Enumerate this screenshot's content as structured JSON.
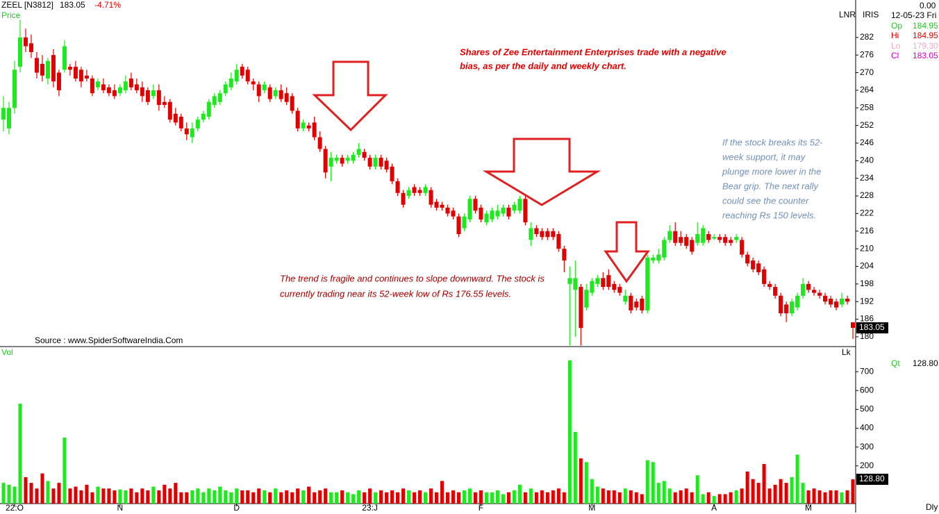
{
  "header": {
    "symbol": "ZEEL [N3812]",
    "price": 183.05,
    "change": {
      "value": -4.71,
      "label": "-4.71%"
    },
    "price_label": "Price",
    "vol_label": "Vol",
    "lnr": "LNR",
    "iris": "IRIS",
    "lk": "Lk",
    "period": "Dly",
    "source": "Source : www.SpiderSoftwareIndia.Com"
  },
  "info": {
    "change": {
      "value": 0,
      "label": "0.00"
    },
    "date": "12-05-23 Fri",
    "rows": [
      {
        "label": "Op",
        "value": 184.95
      },
      {
        "label": "Hi",
        "value": 184.95
      },
      {
        "label": "Lo",
        "value": {
          "value": 179.3,
          "label": "179.30"
        }
      },
      {
        "label": "Cl",
        "value": 183.05
      }
    ],
    "qt": {
      "label": "Qt",
      "value": {
        "value": 128.8,
        "label": "128.80"
      }
    }
  },
  "annotations": [
    {
      "lines": [
        "Shares of Zee Entertainment Enterprises trade with a negative",
        "bias, as per the daily and weekly chart."
      ]
    },
    {
      "lines": [
        "The trend is fragile and continues to slope downward. The stock is",
        "currently trading near its 52-week low of Rs 176.55 levels."
      ]
    },
    {
      "lines": [
        "If the stock breaks its 52-",
        "week support, it may",
        "plunge more lower in the",
        "Bear grip. The next rally",
        "could see the counter",
        "reaching Rs 150 levels."
      ]
    }
  ],
  "chart_data": {
    "type": "candlestick",
    "up_color": "#1ee81e",
    "down_color": "#e00000",
    "grid": false,
    "categories": [
      null,
      null,
      "22:O",
      null,
      null,
      null,
      null,
      null,
      null,
      null,
      null,
      null,
      null,
      null,
      null,
      null,
      null,
      null,
      null,
      null,
      null,
      "N",
      null,
      null,
      null,
      null,
      null,
      null,
      null,
      null,
      null,
      null,
      null,
      null,
      null,
      null,
      null,
      null,
      null,
      null,
      null,
      null,
      "D",
      null,
      null,
      null,
      null,
      null,
      null,
      null,
      null,
      null,
      null,
      null,
      null,
      null,
      null,
      null,
      null,
      null,
      null,
      null,
      null,
      null,
      null,
      null,
      "23:J",
      null,
      null,
      null,
      null,
      null,
      null,
      null,
      null,
      null,
      null,
      null,
      null,
      null,
      null,
      null,
      null,
      null,
      null,
      null,
      "F",
      null,
      null,
      null,
      null,
      null,
      null,
      null,
      null,
      null,
      null,
      null,
      null,
      null,
      null,
      null,
      null,
      null,
      null,
      null,
      "M",
      null,
      null,
      null,
      null,
      null,
      null,
      null,
      null,
      null,
      null,
      null,
      null,
      null,
      null,
      null,
      null,
      null,
      null,
      null,
      null,
      null,
      "A",
      null,
      null,
      null,
      null,
      null,
      null,
      null,
      null,
      null,
      null,
      null,
      null,
      null,
      null,
      null,
      null,
      "M",
      null,
      null,
      null,
      null,
      null,
      null,
      null,
      null
    ],
    "open": [
      254,
      251,
      258,
      272,
      282,
      280,
      275,
      273,
      268,
      276,
      270,
      271,
      272,
      272,
      271,
      269,
      268,
      265,
      266,
      265,
      264,
      263,
      264,
      268,
      266,
      265,
      264,
      262,
      264,
      260,
      260,
      256,
      255,
      251,
      248,
      251,
      254,
      255,
      259,
      260,
      263,
      265,
      267,
      272,
      271,
      267,
      266,
      264,
      265,
      262,
      264,
      263,
      262,
      257,
      251,
      252,
      253,
      248,
      244,
      238,
      240,
      241,
      240,
      240,
      242,
      243,
      241,
      238,
      241,
      240,
      238,
      233,
      229,
      228,
      231,
      230,
      229,
      230,
      226,
      225,
      224,
      223,
      221,
      217,
      220,
      227,
      224,
      219,
      220,
      221,
      222,
      224,
      223,
      223,
      227,
      213,
      217,
      216,
      216,
      216,
      215,
      210,
      198,
      196,
      197,
      190,
      195,
      198,
      200,
      201,
      198,
      197,
      192,
      194,
      192,
      193,
      189,
      206,
      206,
      207,
      213,
      216,
      214,
      214,
      213,
      212,
      212,
      215,
      213.5,
      214,
      214,
      213,
      213,
      213,
      208,
      206,
      205,
      203,
      198,
      197,
      194,
      191,
      188,
      190,
      194,
      198,
      196,
      195,
      194,
      193,
      192,
      191,
      193,
      184.95
    ],
    "high": [
      262,
      260,
      274,
      288,
      285,
      283,
      277,
      276,
      275,
      278,
      271,
      281,
      273,
      274,
      272,
      271,
      269,
      268,
      268,
      266,
      266,
      266,
      269,
      270,
      268,
      267,
      265,
      266,
      266,
      262,
      261,
      258,
      256,
      253,
      253,
      255,
      257,
      261,
      263,
      264,
      267,
      270,
      273,
      273,
      272,
      268,
      267,
      267,
      266,
      265,
      266,
      265,
      263,
      258,
      254,
      253,
      255,
      250,
      245,
      243,
      242,
      242,
      242,
      243,
      246,
      244,
      242,
      242,
      242,
      241,
      239,
      234,
      230,
      231,
      232,
      231,
      232,
      231,
      227,
      226,
      225,
      224,
      222,
      222,
      228,
      228,
      225,
      223,
      224,
      225,
      225,
      225,
      226,
      228,
      228,
      219,
      218,
      217,
      217,
      217,
      216,
      211,
      204,
      206,
      198,
      198,
      200,
      201,
      202,
      203,
      199,
      198,
      196,
      195,
      193,
      194,
      208,
      208,
      210,
      214,
      218,
      219,
      216,
      215,
      214,
      219,
      218,
      216,
      215,
      215,
      215,
      214,
      215,
      214,
      209,
      207,
      206,
      204,
      199,
      198,
      195,
      192,
      193,
      195,
      200,
      199,
      197,
      196,
      195,
      194,
      193,
      195,
      194,
      184.95
    ],
    "low": [
      250,
      249,
      256,
      270,
      277,
      275,
      268,
      267,
      266,
      265,
      262,
      270,
      269,
      267,
      265,
      267,
      262,
      264,
      263,
      262,
      261,
      262,
      263,
      264,
      263,
      260,
      259,
      261,
      257,
      258,
      253,
      252,
      250,
      247,
      246,
      250,
      253,
      254,
      258,
      259,
      262,
      264,
      266,
      268,
      266,
      264,
      260,
      263,
      260,
      261,
      260,
      259,
      256,
      250,
      250,
      250,
      247,
      243,
      234,
      233,
      239,
      238,
      239,
      239,
      241,
      240,
      237,
      237,
      237,
      236,
      232,
      228,
      224,
      227,
      228,
      228,
      228,
      224,
      223,
      223,
      221,
      220,
      214,
      216,
      219,
      222,
      219,
      218,
      219,
      220,
      221,
      220,
      222,
      222,
      218,
      211,
      214,
      213,
      213,
      213,
      209,
      202,
      177,
      180,
      177,
      189,
      194,
      197,
      196,
      196,
      195,
      194,
      191,
      188,
      189,
      188,
      188,
      205,
      205,
      206,
      212,
      211,
      211,
      210,
      208,
      211,
      211,
      212,
      213,
      212,
      211,
      211,
      212,
      207,
      204,
      202,
      201,
      197,
      196,
      193,
      187,
      185,
      187,
      189,
      193,
      195,
      194,
      193,
      191,
      190,
      189,
      190,
      191,
      179.3
    ],
    "close": [
      258,
      258,
      271,
      282,
      279,
      277,
      270,
      269,
      274,
      267,
      264,
      279,
      271,
      268,
      267,
      268,
      263,
      267,
      264,
      263,
      262,
      265,
      267,
      265,
      264,
      262,
      260,
      264,
      259,
      259,
      254,
      253,
      251,
      249,
      251,
      254,
      256,
      260,
      262,
      263,
      266,
      268,
      271,
      269,
      267,
      266,
      262,
      266,
      261,
      264,
      261,
      260,
      257,
      251,
      253,
      251,
      248,
      244,
      236,
      241,
      241,
      239,
      241,
      242,
      244,
      241,
      238,
      241,
      238,
      237,
      233,
      229,
      225,
      230,
      229,
      229,
      231,
      225,
      224,
      224,
      222,
      221,
      215,
      221,
      227,
      223,
      220,
      222,
      223,
      223,
      224,
      221,
      225,
      227,
      219,
      217,
      215,
      214,
      214,
      214,
      210,
      206,
      200,
      200,
      183,
      196,
      199,
      200,
      197,
      197,
      196,
      195,
      194,
      189,
      190,
      189,
      207,
      207,
      208,
      213,
      216,
      212,
      212,
      211,
      209,
      215,
      217,
      213,
      214,
      213,
      212,
      212,
      214,
      208,
      205,
      203,
      202,
      198,
      197,
      194,
      188,
      188,
      192,
      194,
      198,
      196,
      195,
      194,
      192,
      191,
      190,
      193,
      192,
      183.05
    ],
    "ylim": [
      176.9,
      291.2
    ],
    "yticks": [
      180,
      186,
      192,
      198,
      204,
      210,
      216,
      222,
      228,
      234,
      240,
      246,
      252,
      258,
      264,
      270,
      276,
      282
    ],
    "volume": {
      "values": [
        110,
        100,
        90,
        530,
        140,
        110,
        80,
        160,
        120,
        80,
        110,
        350,
        80,
        90,
        70,
        100,
        60,
        90,
        80,
        80,
        70,
        75,
        70,
        80,
        60,
        80,
        70,
        90,
        70,
        100,
        80,
        110,
        60,
        60,
        70,
        80,
        60,
        80,
        70,
        90,
        70,
        60,
        80,
        70,
        70,
        60,
        80,
        70,
        60,
        80,
        60,
        70,
        60,
        80,
        70,
        90,
        60,
        70,
        80,
        60,
        60,
        70,
        60,
        50,
        70,
        60,
        80,
        60,
        70,
        60,
        70,
        60,
        80,
        70,
        60,
        70,
        60,
        80,
        60,
        120,
        60,
        70,
        60,
        70,
        80,
        60,
        70,
        60,
        60,
        70,
        50,
        60,
        70,
        100,
        60,
        80,
        60,
        70,
        60,
        70,
        80,
        60,
        760,
        380,
        240,
        220,
        130,
        90,
        80,
        70,
        70,
        60,
        80,
        70,
        60,
        50,
        230,
        220,
        110,
        120,
        80,
        60,
        70,
        80,
        60,
        150,
        50,
        60,
        40,
        50,
        50,
        60,
        70,
        80,
        170,
        130,
        110,
        210,
        80,
        100,
        130,
        110,
        140,
        260,
        110,
        70,
        80,
        70,
        60,
        70,
        70,
        60,
        70,
        128.8
      ],
      "ylim": [
        0,
        822
      ],
      "yticks": [
        200,
        300,
        400,
        500,
        600,
        700
      ]
    }
  }
}
